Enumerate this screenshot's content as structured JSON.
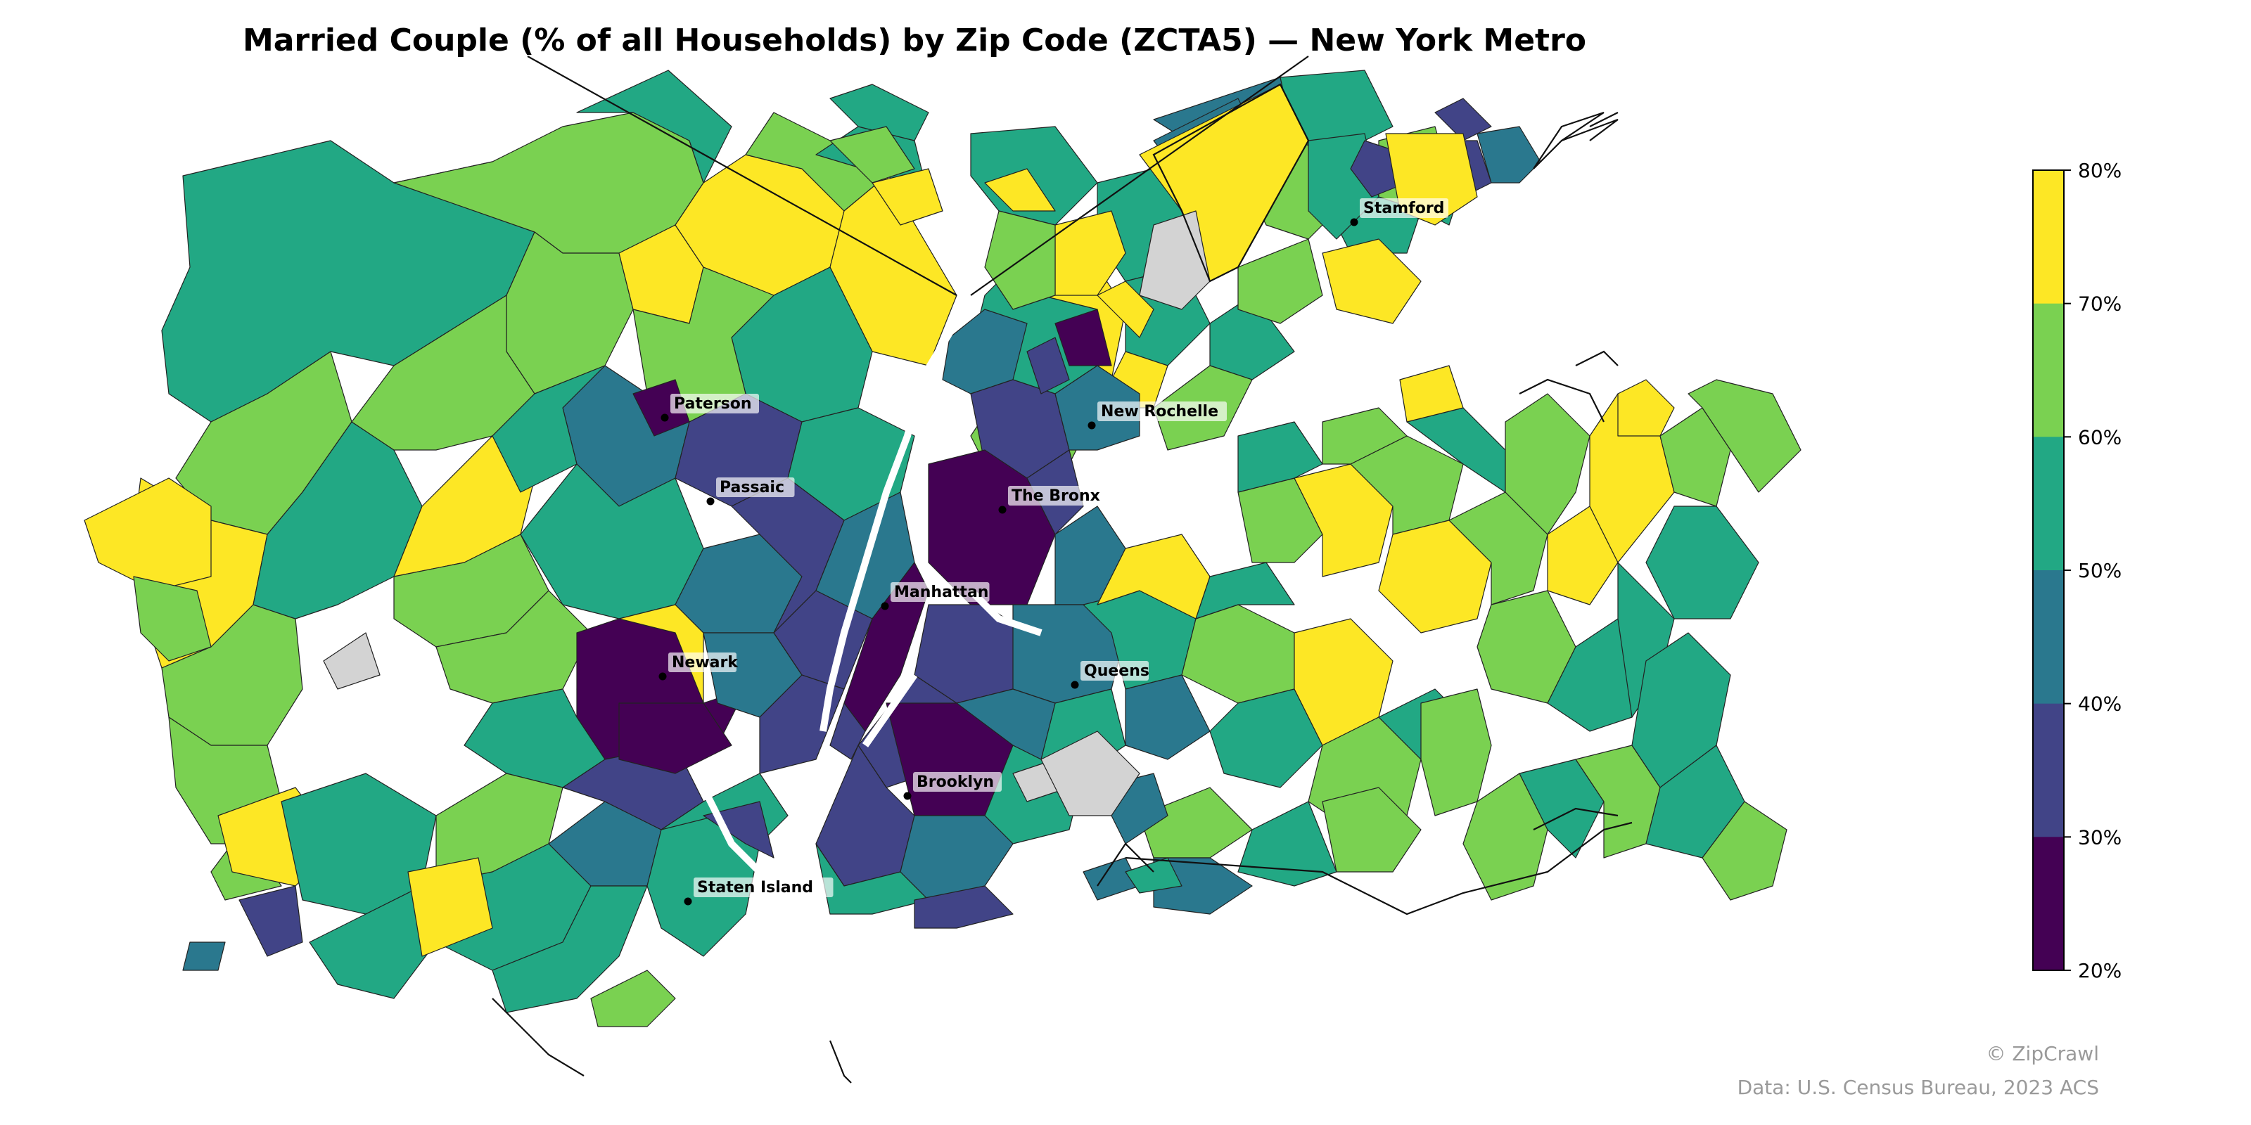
{
  "title": "Married Couple (% of all Households) by Zip Code (ZCTA5) — New York Metro",
  "colorbar": {
    "ticks": [
      "80%",
      "70%",
      "60%",
      "50%",
      "40%",
      "30%",
      "20%"
    ],
    "bins": [
      {
        "range": "70-80%",
        "color": "#fde725"
      },
      {
        "range": "60-70%",
        "color": "#7ad151"
      },
      {
        "range": "50-60%",
        "color": "#22a884"
      },
      {
        "range": "40-50%",
        "color": "#2a788e"
      },
      {
        "range": "30-40%",
        "color": "#414487"
      },
      {
        "range": "20-30%",
        "color": "#440154"
      }
    ],
    "no_data_color": "#d3d3d3"
  },
  "places": [
    {
      "name": "Stamford"
    },
    {
      "name": "Paterson"
    },
    {
      "name": "New Rochelle"
    },
    {
      "name": "Passaic"
    },
    {
      "name": "The Bronx"
    },
    {
      "name": "Manhattan"
    },
    {
      "name": "Newark"
    },
    {
      "name": "Queens"
    },
    {
      "name": "Brooklyn"
    },
    {
      "name": "Staten Island"
    }
  ],
  "credits": {
    "copyright": "© ZipCrawl",
    "source": "Data: U.S. Census Bureau, 2023 ACS"
  }
}
